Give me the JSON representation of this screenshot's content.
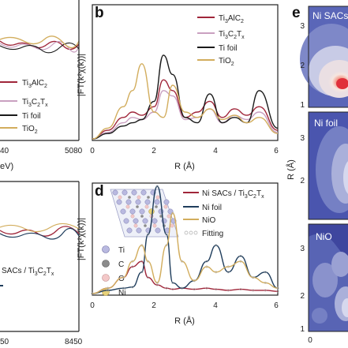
{
  "panel_letters": {
    "b": "b",
    "d": "d",
    "e": "e"
  },
  "panel_a": {
    "x_ticks": [
      "40",
      "5080"
    ],
    "x_label_fragment": "eV)",
    "legend": [
      {
        "main": "Ti",
        "s1": "3",
        "mid": "AlC",
        "s2": "2",
        "tail": "",
        "color": "#a0263a"
      },
      {
        "main": "Ti",
        "s1": "3",
        "mid": "C",
        "s2": "2",
        "tail": "T",
        "s3": "x",
        "color": "#c9a0c0"
      },
      {
        "main": "Ti foil",
        "color": "#1a1a1a"
      },
      {
        "main": "TiO",
        "s1": "2",
        "color": "#d2ad5d"
      }
    ]
  },
  "panel_c": {
    "x_ticks": [
      "50",
      "8450"
    ],
    "legend": [
      {
        "main": "SACs / Ti",
        "s1": "3",
        "mid": "C",
        "s2": "2",
        "tail": "T",
        "s3": "x"
      }
    ]
  },
  "panel_b": {
    "y_label": "|FT(k²χ(k))|",
    "x_label": "R (Å)",
    "x_ticks": [
      "0",
      "2",
      "4",
      "6"
    ],
    "legend": [
      {
        "main": "Ti",
        "s1": "3",
        "mid": "AlC",
        "s2": "2",
        "color": "#a0263a"
      },
      {
        "main": "Ti",
        "s1": "3",
        "mid": "C",
        "s2": "2",
        "tail": "T",
        "s3": "x",
        "color": "#c9a0c0"
      },
      {
        "main": "Ti foil",
        "color": "#1a1a1a"
      },
      {
        "main": "TiO",
        "s1": "2",
        "color": "#d2ad5d"
      }
    ]
  },
  "panel_d": {
    "y_label": "|FT(k²χ(k))|",
    "x_label": "R (Å)",
    "x_ticks": [
      "0",
      "2",
      "4",
      "6"
    ],
    "legend": [
      {
        "main": "Ni SACs / Ti",
        "s1": "3",
        "mid": "C",
        "s2": "2",
        "tail": "T",
        "s3": "x",
        "color": "#a0263a",
        "kind": "line"
      },
      {
        "main": "Ni foil",
        "color": "#1f3d5c",
        "kind": "line"
      },
      {
        "main": "NiO",
        "color": "#d2ad5d",
        "kind": "line"
      },
      {
        "main": "Fitting",
        "color": "#999999",
        "kind": "dots"
      }
    ],
    "atoms": [
      {
        "label": "Ti",
        "color": "#b9b9e0"
      },
      {
        "label": "C",
        "color": "#8c8c8c"
      },
      {
        "label": "O",
        "color": "#f3c8c8"
      },
      {
        "label": "Ni",
        "color": "#e8d27a"
      }
    ]
  },
  "panel_e": {
    "labels": [
      "Ni SACs",
      "Ni foil",
      "NiO"
    ],
    "y_label": "R (Å)",
    "y_ticks_top": [
      "3",
      "2",
      "1"
    ],
    "y_ticks_mid": [
      "3",
      "2"
    ],
    "y_ticks_bot": [
      "3",
      "2",
      "1"
    ],
    "x_tick_bottom": "0"
  },
  "chart_data": [
    {
      "type": "line",
      "panel": "b",
      "xlabel": "R (Å)",
      "ylabel": "|FT(k²χ(k))|",
      "xlim": [
        0,
        6
      ],
      "x": [
        0,
        0.5,
        1.0,
        1.3,
        1.6,
        2.0,
        2.3,
        2.6,
        3.0,
        3.4,
        3.8,
        4.2,
        4.6,
        5.0,
        5.4,
        6.0
      ],
      "series": [
        {
          "name": "Ti3AlC2",
          "color": "#a0263a",
          "values": [
            0,
            0.08,
            0.2,
            0.25,
            0.22,
            0.3,
            0.55,
            0.45,
            0.2,
            0.25,
            0.35,
            0.2,
            0.28,
            0.22,
            0.3,
            0.08
          ]
        },
        {
          "name": "Ti3C2Tx",
          "color": "#c9a0c0",
          "values": [
            0,
            0.06,
            0.15,
            0.2,
            0.18,
            0.25,
            0.45,
            0.4,
            0.18,
            0.2,
            0.28,
            0.15,
            0.22,
            0.18,
            0.25,
            0.06
          ]
        },
        {
          "name": "Ti foil",
          "color": "#1a1a1a",
          "values": [
            0,
            0.05,
            0.12,
            0.15,
            0.18,
            0.35,
            0.78,
            0.6,
            0.2,
            0.15,
            0.42,
            0.15,
            0.2,
            0.15,
            0.45,
            0.1
          ]
        },
        {
          "name": "TiO2",
          "color": "#d2ad5d",
          "values": [
            0,
            0.1,
            0.3,
            0.45,
            0.7,
            0.25,
            0.2,
            0.5,
            0.25,
            0.2,
            0.28,
            0.18,
            0.22,
            0.15,
            0.2,
            0.05
          ]
        }
      ]
    },
    {
      "type": "line",
      "panel": "d",
      "xlabel": "R (Å)",
      "ylabel": "|FT(k²χ(k))|",
      "xlim": [
        0,
        6
      ],
      "x": [
        0,
        0.5,
        1.0,
        1.3,
        1.6,
        1.8,
        2.1,
        2.4,
        2.6,
        2.9,
        3.3,
        3.7,
        4.0,
        4.4,
        4.8,
        5.2,
        5.6,
        6.0
      ],
      "series": [
        {
          "name": "Ni SACs / Ti3C2Tx",
          "color": "#a0263a",
          "values": [
            0,
            0.05,
            0.15,
            0.25,
            0.3,
            0.15,
            0.08,
            0.05,
            0.04,
            0.05,
            0.04,
            0.05,
            0.04,
            0.03,
            0.04,
            0.03,
            0.03,
            0.02
          ]
        },
        {
          "name": "Ni foil",
          "color": "#1f3d5c",
          "values": [
            0,
            0.03,
            0.05,
            0.06,
            0.2,
            0.55,
            1.0,
            0.55,
            0.1,
            0.05,
            0.12,
            0.3,
            0.45,
            0.2,
            0.35,
            0.15,
            0.2,
            0.05
          ]
        },
        {
          "name": "NiO",
          "color": "#d2ad5d",
          "values": [
            0,
            0.05,
            0.15,
            0.3,
            0.45,
            0.3,
            0.1,
            0.45,
            0.75,
            0.3,
            0.12,
            0.25,
            0.2,
            0.25,
            0.3,
            0.15,
            0.1,
            0.05
          ]
        }
      ]
    }
  ]
}
